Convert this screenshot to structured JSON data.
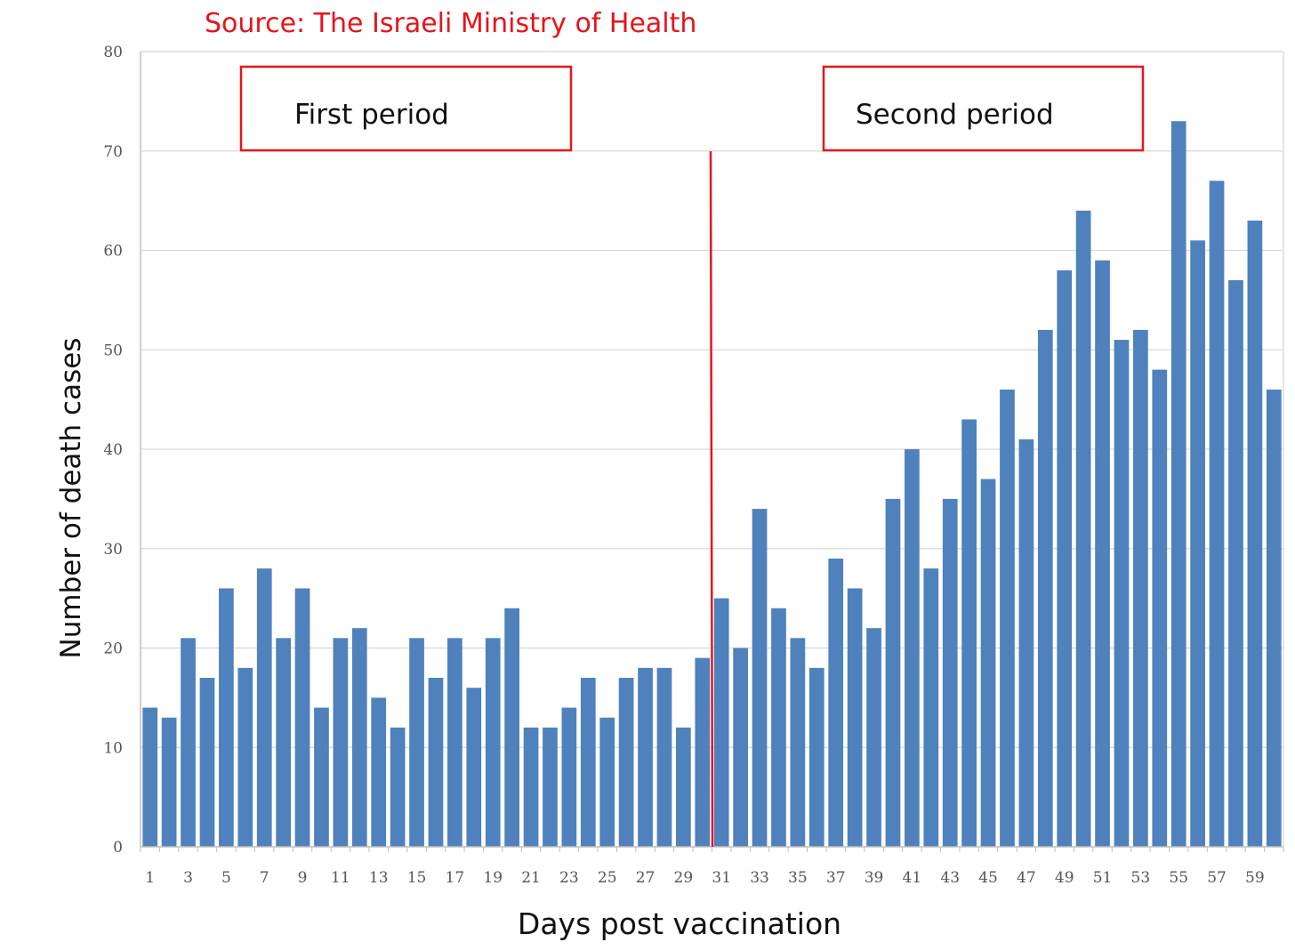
{
  "source_text": "Source: The Israeli Ministry of Health",
  "period_labels": {
    "first": "First period",
    "second": "Second period"
  },
  "colors": {
    "bar": "#4f81bd",
    "accent": "#e8141b",
    "grid": "#d9d9d9",
    "axis": "#bfbfbf"
  },
  "chart_data": {
    "type": "bar",
    "title": "",
    "xlabel": "Days post vaccination",
    "ylabel": "Number of death cases",
    "ylim": [
      0,
      80
    ],
    "yticks": [
      0,
      10,
      20,
      30,
      40,
      50,
      60,
      70,
      80
    ],
    "x": [
      1,
      2,
      3,
      4,
      5,
      6,
      7,
      8,
      9,
      10,
      11,
      12,
      13,
      14,
      15,
      16,
      17,
      18,
      19,
      20,
      21,
      22,
      23,
      24,
      25,
      26,
      27,
      28,
      29,
      30,
      31,
      32,
      33,
      34,
      35,
      36,
      37,
      38,
      39,
      40,
      41,
      42,
      43,
      44,
      45,
      46,
      47,
      48,
      49,
      50,
      51,
      52,
      53,
      54,
      55,
      56,
      57,
      58,
      59,
      60
    ],
    "xtick_labels": [
      "1",
      "3",
      "5",
      "7",
      "9",
      "11",
      "13",
      "15",
      "17",
      "19",
      "21",
      "23",
      "25",
      "27",
      "29",
      "31",
      "33",
      "35",
      "37",
      "39",
      "41",
      "43",
      "45",
      "47",
      "49",
      "51",
      "53",
      "55",
      "57",
      "59"
    ],
    "values": [
      14,
      13,
      21,
      17,
      26,
      18,
      28,
      21,
      26,
      14,
      21,
      22,
      15,
      12,
      21,
      17,
      21,
      16,
      21,
      24,
      12,
      12,
      14,
      17,
      13,
      17,
      18,
      18,
      12,
      19,
      25,
      20,
      34,
      24,
      21,
      18,
      29,
      26,
      22,
      35,
      40,
      28,
      35,
      43,
      37,
      46,
      41,
      52,
      58,
      64,
      59,
      51,
      52,
      48,
      73,
      61,
      67,
      57,
      63,
      46
    ],
    "divider_after_day": 30,
    "grid": true,
    "legend": "none"
  }
}
